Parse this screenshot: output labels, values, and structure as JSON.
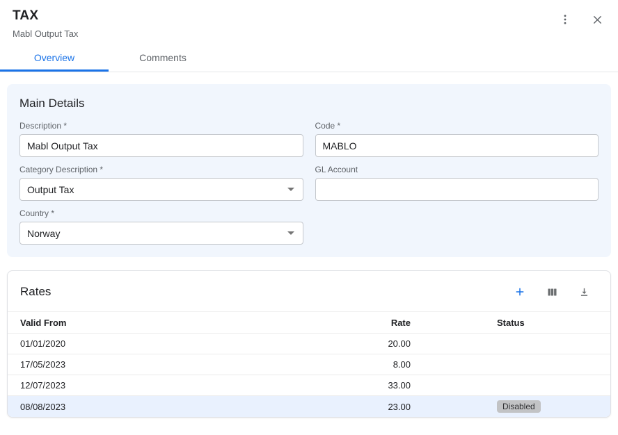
{
  "colors": {
    "accent": "#1a73e8",
    "panel_bg": "#f1f6fd",
    "row_highlight": "#e9f1fe",
    "badge_bg": "#c2c3c5",
    "text_primary": "#202124",
    "text_secondary": "#5f6368"
  },
  "header": {
    "title": "TAX",
    "subtitle": "Mabl Output Tax",
    "tabs": [
      {
        "label": "Overview",
        "active": true
      },
      {
        "label": "Comments",
        "active": false
      }
    ],
    "icons": [
      "kebab-menu-icon",
      "close-icon"
    ]
  },
  "main_details": {
    "title": "Main Details",
    "fields": {
      "description": {
        "label": "Description *",
        "value": "Mabl Output Tax",
        "type": "text"
      },
      "code": {
        "label": "Code *",
        "value": "MABLO",
        "type": "text"
      },
      "category_description": {
        "label": "Category Description *",
        "value": "Output Tax",
        "type": "select"
      },
      "gl_account": {
        "label": "GL Account",
        "value": "",
        "type": "text"
      },
      "country": {
        "label": "Country *",
        "value": "Norway",
        "type": "select"
      }
    }
  },
  "rates": {
    "title": "Rates",
    "toolbar_icons": [
      "add-icon",
      "columns-icon",
      "download-icon"
    ],
    "table": {
      "columns": [
        "Valid From",
        "Rate",
        "Status"
      ],
      "rows": [
        {
          "valid_from": "01/01/2020",
          "rate": "20.00",
          "status": "",
          "selected": false
        },
        {
          "valid_from": "17/05/2023",
          "rate": "8.00",
          "status": "",
          "selected": false
        },
        {
          "valid_from": "12/07/2023",
          "rate": "33.00",
          "status": "",
          "selected": false
        },
        {
          "valid_from": "08/08/2023",
          "rate": "23.00",
          "status": "Disabled",
          "selected": true
        }
      ]
    }
  }
}
